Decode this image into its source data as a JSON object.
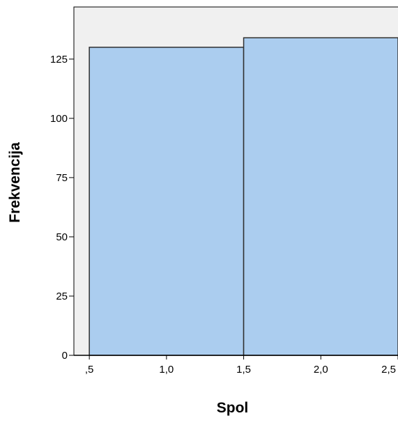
{
  "chart_data": {
    "type": "bar",
    "title": "",
    "xlabel": "Spol",
    "ylabel": "Frekvencija",
    "bins": [
      {
        "x_start": 0.5,
        "x_end": 1.5,
        "value": 130
      },
      {
        "x_start": 1.5,
        "x_end": 2.5,
        "value": 134
      }
    ],
    "xlim": [
      0.4,
      2.5
    ],
    "ylim": [
      0,
      147
    ],
    "x_ticks": [
      0.5,
      1.0,
      1.5,
      2.0,
      2.5
    ],
    "x_tick_labels": [
      ",5",
      "1,0",
      "1,5",
      "2,0",
      "2,5"
    ],
    "y_ticks": [
      0,
      25,
      50,
      75,
      100,
      125
    ],
    "y_tick_labels": [
      "0",
      "25",
      "50",
      "75",
      "100",
      "125"
    ],
    "grid": false,
    "legend": "none",
    "colors": {
      "plot_background": "#f0f0f0",
      "bar_fill": "#abcdef",
      "bar_stroke": "#303030",
      "axis": "#000000"
    }
  }
}
